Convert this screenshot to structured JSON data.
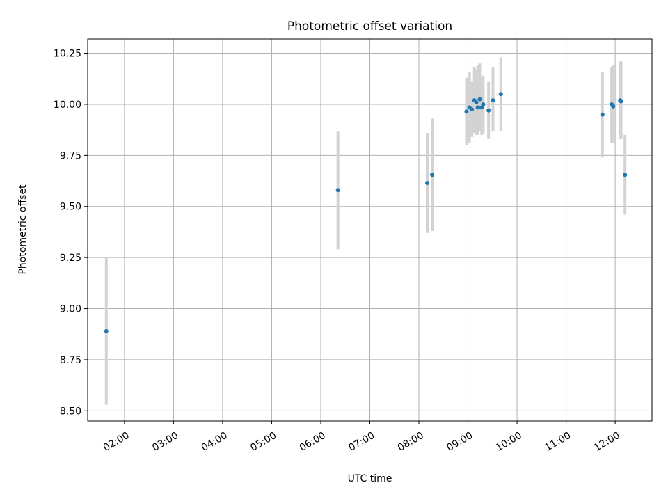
{
  "chart_data": {
    "type": "scatter",
    "title": "Photometric offset variation",
    "xlabel": "UTC time",
    "ylabel": "Photometric offset",
    "x_unit": "hours UTC",
    "xlim": [
      1.25,
      12.75
    ],
    "ylim": [
      8.45,
      10.32
    ],
    "grid": true,
    "x_ticks": [
      {
        "value": 2,
        "label": "02:00"
      },
      {
        "value": 3,
        "label": "03:00"
      },
      {
        "value": 4,
        "label": "04:00"
      },
      {
        "value": 5,
        "label": "05:00"
      },
      {
        "value": 6,
        "label": "06:00"
      },
      {
        "value": 7,
        "label": "07:00"
      },
      {
        "value": 8,
        "label": "08:00"
      },
      {
        "value": 9,
        "label": "09:00"
      },
      {
        "value": 10,
        "label": "10:00"
      },
      {
        "value": 11,
        "label": "11:00"
      },
      {
        "value": 12,
        "label": "12:00"
      }
    ],
    "y_ticks": [
      {
        "value": 8.5,
        "label": "8.50"
      },
      {
        "value": 8.75,
        "label": "8.75"
      },
      {
        "value": 9.0,
        "label": "9.00"
      },
      {
        "value": 9.25,
        "label": "9.25"
      },
      {
        "value": 9.5,
        "label": "9.50"
      },
      {
        "value": 9.75,
        "label": "9.75"
      },
      {
        "value": 10.0,
        "label": "10.00"
      },
      {
        "value": 10.25,
        "label": "10.25"
      }
    ],
    "marker_color": "#1f77b4",
    "errorbar_color": "#d3d3d3",
    "points": [
      {
        "x": 1.63,
        "y": 8.89,
        "lo": 8.53,
        "hi": 9.25
      },
      {
        "x": 6.35,
        "y": 9.58,
        "lo": 9.29,
        "hi": 9.87
      },
      {
        "x": 8.17,
        "y": 9.615,
        "lo": 9.37,
        "hi": 9.86
      },
      {
        "x": 8.27,
        "y": 9.655,
        "lo": 9.38,
        "hi": 9.93
      },
      {
        "x": 8.97,
        "y": 9.965,
        "lo": 9.8,
        "hi": 10.13
      },
      {
        "x": 9.03,
        "y": 9.985,
        "lo": 9.81,
        "hi": 10.16
      },
      {
        "x": 9.08,
        "y": 9.975,
        "lo": 9.84,
        "hi": 10.11
      },
      {
        "x": 9.13,
        "y": 10.02,
        "lo": 9.86,
        "hi": 10.18
      },
      {
        "x": 9.17,
        "y": 10.01,
        "lo": 9.85,
        "hi": 10.17
      },
      {
        "x": 9.2,
        "y": 9.985,
        "lo": 9.85,
        "hi": 10.19
      },
      {
        "x": 9.24,
        "y": 10.025,
        "lo": 9.87,
        "hi": 10.2
      },
      {
        "x": 9.28,
        "y": 9.985,
        "lo": 9.85,
        "hi": 10.13
      },
      {
        "x": 9.31,
        "y": 10.0,
        "lo": 9.86,
        "hi": 10.14
      },
      {
        "x": 9.42,
        "y": 9.97,
        "lo": 9.83,
        "hi": 10.11
      },
      {
        "x": 9.51,
        "y": 10.02,
        "lo": 9.87,
        "hi": 10.18
      },
      {
        "x": 9.67,
        "y": 10.05,
        "lo": 9.87,
        "hi": 10.23
      },
      {
        "x": 11.74,
        "y": 9.95,
        "lo": 9.74,
        "hi": 10.16
      },
      {
        "x": 11.93,
        "y": 10.0,
        "lo": 9.81,
        "hi": 10.18
      },
      {
        "x": 11.96,
        "y": 9.99,
        "lo": 9.81,
        "hi": 10.19
      },
      {
        "x": 12.1,
        "y": 10.02,
        "lo": 9.83,
        "hi": 10.21
      },
      {
        "x": 12.12,
        "y": 10.015,
        "lo": 9.83,
        "hi": 10.21
      },
      {
        "x": 12.2,
        "y": 9.655,
        "lo": 9.46,
        "hi": 9.85
      }
    ]
  }
}
